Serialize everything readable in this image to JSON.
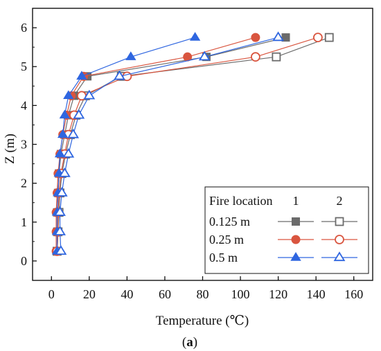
{
  "chart_data": {
    "type": "line",
    "xlabel": "Temperature (℃)",
    "ylabel": "Z (m)",
    "caption_prefix": "(",
    "caption_letter": "a",
    "caption_suffix": ")",
    "xlim": [
      -10,
      170
    ],
    "ylim": [
      -0.5,
      6.5
    ],
    "xticks": [
      0,
      20,
      40,
      60,
      80,
      100,
      120,
      140,
      160
    ],
    "yticks": [
      0,
      1,
      2,
      3,
      4,
      5,
      6
    ],
    "grid": false,
    "legend": {
      "placement": "bottom-right",
      "header": "Fire location",
      "col1": "1",
      "col2": "2",
      "rows": [
        "0.125 m",
        "0.25 m",
        "0.5 m"
      ]
    },
    "y": [
      0.25,
      0.75,
      1.25,
      1.75,
      2.25,
      2.75,
      3.25,
      3.75,
      4.25,
      4.75,
      5.25,
      5.75
    ],
    "series": [
      {
        "group": "0.125 m",
        "location": "1",
        "marker": "square",
        "filled": true,
        "color": "#6b6b6b",
        "x": [
          3,
          3,
          3,
          3.5,
          4,
          5,
          7,
          9,
          12,
          19,
          82,
          124
        ]
      },
      {
        "group": "0.125 m",
        "location": "2",
        "marker": "square",
        "filled": false,
        "color": "#6b6b6b",
        "x": [
          3,
          3.5,
          4,
          4.5,
          5.5,
          7.5,
          10,
          13,
          18,
          37,
          119,
          147
        ]
      },
      {
        "group": "0.25 m",
        "location": "1",
        "marker": "circle",
        "filled": true,
        "color": "#d9553f",
        "x": [
          2.5,
          2.5,
          2.5,
          3,
          3.5,
          4.5,
          6,
          8,
          10.5,
          17,
          72,
          108
        ]
      },
      {
        "group": "0.25 m",
        "location": "2",
        "marker": "circle",
        "filled": false,
        "color": "#d9553f",
        "x": [
          3,
          3.5,
          3.5,
          4,
          5,
          7,
          9,
          12,
          16,
          40,
          108,
          141
        ]
      },
      {
        "group": "0.5 m",
        "location": "1",
        "marker": "triangle",
        "filled": true,
        "color": "#2f66e0",
        "x": [
          3,
          3,
          3,
          3.5,
          4,
          4.5,
          6,
          7,
          9,
          16,
          42,
          76
        ]
      },
      {
        "group": "0.5 m",
        "location": "2",
        "marker": "triangle",
        "filled": false,
        "color": "#2f66e0",
        "x": [
          5,
          4.5,
          4.5,
          5.5,
          7,
          9,
          11.5,
          14.5,
          20,
          36,
          81,
          120
        ]
      }
    ]
  }
}
